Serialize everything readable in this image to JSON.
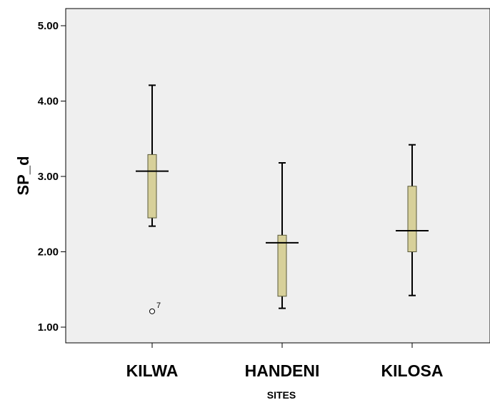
{
  "chart_data": {
    "type": "boxplot",
    "xlabel": "SITES",
    "ylabel": "SP_d",
    "ylim": [
      0.8,
      5.2
    ],
    "yticks": [
      1.0,
      2.0,
      3.0,
      4.0,
      5.0
    ],
    "ytick_labels": [
      "1.00",
      "2.00",
      "3.00",
      "4.00",
      "5.00"
    ],
    "categories": [
      "KILWA",
      "HANDENI",
      "KILOSA"
    ],
    "boxes": [
      {
        "category": "KILWA",
        "whisker_low": 2.34,
        "q1": 2.45,
        "median": 3.07,
        "q3": 3.29,
        "whisker_high": 4.21,
        "outliers": [
          {
            "value": 1.21,
            "label": "7"
          }
        ]
      },
      {
        "category": "HANDENI",
        "whisker_low": 1.25,
        "q1": 1.41,
        "median": 2.12,
        "q3": 2.22,
        "whisker_high": 3.18,
        "outliers": []
      },
      {
        "category": "KILOSA",
        "whisker_low": 1.42,
        "q1": 2.0,
        "median": 2.28,
        "q3": 2.87,
        "whisker_high": 3.42,
        "outliers": []
      }
    ],
    "grid": false,
    "colors": {
      "box_fill": "#d7d09a",
      "box_stroke": "#5a5a3a",
      "plot_background": "#efefef",
      "line": "#000000"
    }
  }
}
